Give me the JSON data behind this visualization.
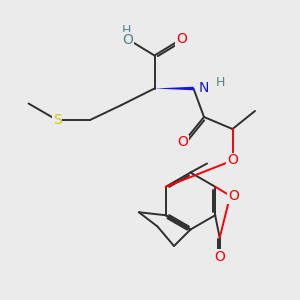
{
  "bg": "#ebebeb",
  "bc": "#2f2f2f",
  "lw": 1.4,
  "ac": {
    "O": "#ff0000",
    "N": "#1515dd",
    "S": "#cccc00",
    "teal": "#4a8888"
  },
  "fs": 9.0,
  "figsize": [
    3.0,
    3.0
  ],
  "dpi": 100
}
